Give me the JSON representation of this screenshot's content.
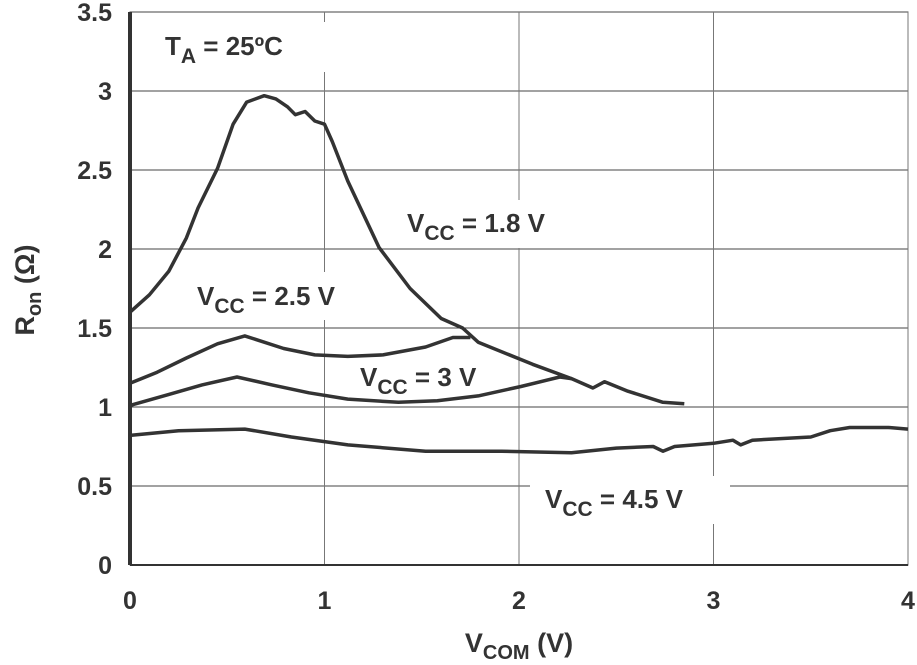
{
  "chart_data": {
    "type": "line",
    "xlabel": {
      "main": "V",
      "sub": "COM",
      "rest": " (V)"
    },
    "ylabel": {
      "main": "R",
      "sub": "on",
      "rest": " (Ω)"
    },
    "xlim": [
      0,
      4
    ],
    "ylim": [
      0,
      3.5
    ],
    "xticks": [
      "0",
      "1",
      "2",
      "3",
      "4"
    ],
    "yticks": [
      "0",
      "0.5",
      "1",
      "1.5",
      "2",
      "2.5",
      "3",
      "3.5"
    ],
    "grid": true,
    "line_color": "#333333",
    "annotations": [
      {
        "main": "T",
        "sub": "A",
        "rest": " = 25ºC"
      }
    ],
    "series": [
      {
        "name": {
          "main": "V",
          "sub": "CC",
          "rest": " = 1.8 V"
        },
        "x": [
          0,
          0.1,
          0.2,
          0.29,
          0.35,
          0.45,
          0.53,
          0.6,
          0.69,
          0.75,
          0.81,
          0.85,
          0.9,
          0.95,
          1.0,
          1.04,
          1.12,
          1.28,
          1.44,
          1.6,
          1.71,
          1.79,
          2.07,
          2.27,
          2.38,
          2.44,
          2.56,
          2.74,
          2.85
        ],
        "y": [
          1.6,
          1.71,
          1.86,
          2.07,
          2.26,
          2.51,
          2.79,
          2.93,
          2.97,
          2.95,
          2.9,
          2.85,
          2.87,
          2.81,
          2.79,
          2.68,
          2.43,
          2.01,
          1.75,
          1.56,
          1.5,
          1.41,
          1.27,
          1.18,
          1.12,
          1.16,
          1.1,
          1.03,
          1.02
        ]
      },
      {
        "name": {
          "main": "V",
          "sub": "CC",
          "rest": " = 2.5 V"
        },
        "x": [
          0,
          0.14,
          0.29,
          0.45,
          0.59,
          0.79,
          0.95,
          1.12,
          1.3,
          1.52,
          1.66,
          1.75
        ],
        "y": [
          1.15,
          1.22,
          1.31,
          1.4,
          1.45,
          1.37,
          1.33,
          1.32,
          1.33,
          1.38,
          1.44,
          1.44
        ]
      },
      {
        "name": {
          "main": "V",
          "sub": "CC",
          "rest": " = 3 V"
        },
        "x": [
          0,
          0.2,
          0.37,
          0.55,
          0.73,
          0.92,
          1.12,
          1.38,
          1.58,
          1.79,
          2.01,
          2.21,
          2.27
        ],
        "y": [
          1.01,
          1.08,
          1.14,
          1.19,
          1.14,
          1.09,
          1.05,
          1.03,
          1.04,
          1.07,
          1.13,
          1.19,
          1.18
        ]
      },
      {
        "name": {
          "main": "V",
          "sub": "CC",
          "rest": " = 4.5 V"
        },
        "x": [
          0,
          0.25,
          0.59,
          0.83,
          1.12,
          1.52,
          1.91,
          2.27,
          2.5,
          2.69,
          2.74,
          2.8,
          3.0,
          3.1,
          3.14,
          3.2,
          3.5,
          3.6,
          3.7,
          3.8,
          3.9,
          4.0
        ],
        "y": [
          0.82,
          0.85,
          0.86,
          0.81,
          0.76,
          0.72,
          0.72,
          0.71,
          0.74,
          0.75,
          0.72,
          0.75,
          0.77,
          0.79,
          0.76,
          0.79,
          0.81,
          0.85,
          0.87,
          0.87,
          0.87,
          0.86
        ]
      }
    ]
  }
}
